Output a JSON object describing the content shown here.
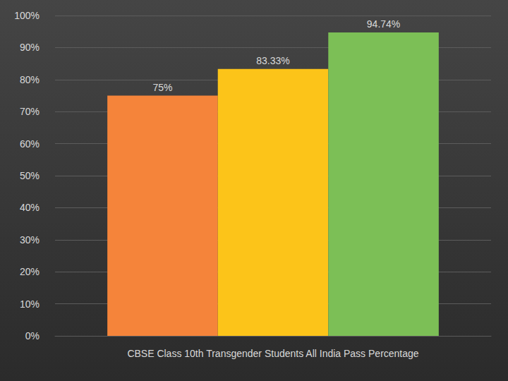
{
  "chart_data": {
    "type": "bar",
    "categories": [
      "CBSE Class 10th Transgender Students All India Pass Percentage"
    ],
    "series": [
      {
        "color": "#f5843a",
        "values": [
          75
        ],
        "value_labels": [
          "75%"
        ]
      },
      {
        "color": "#fcc419",
        "values": [
          83.33
        ],
        "value_labels": [
          "83.33%"
        ]
      },
      {
        "color": "#7cbf56",
        "values": [
          94.74
        ],
        "value_labels": [
          "94.74%"
        ]
      }
    ],
    "ylim": [
      0,
      100
    ],
    "yticks": [
      {
        "value": 0,
        "label": "0%"
      },
      {
        "value": 10,
        "label": "10%"
      },
      {
        "value": 20,
        "label": "20%"
      },
      {
        "value": 30,
        "label": "30%"
      },
      {
        "value": 40,
        "label": "40%"
      },
      {
        "value": 50,
        "label": "50%"
      },
      {
        "value": 60,
        "label": "60%"
      },
      {
        "value": 70,
        "label": "70%"
      },
      {
        "value": 80,
        "label": "80%"
      },
      {
        "value": 90,
        "label": "90%"
      },
      {
        "value": 100,
        "label": "100%"
      }
    ],
    "grid": true,
    "data_labels": true
  }
}
